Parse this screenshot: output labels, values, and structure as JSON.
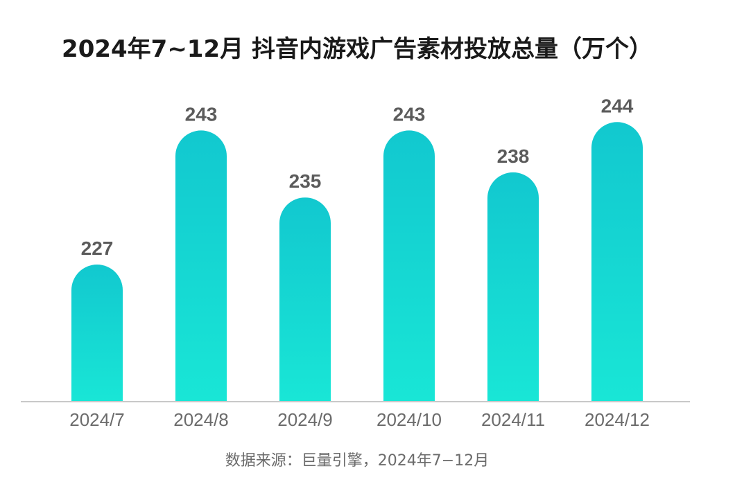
{
  "chart_data": {
    "type": "bar",
    "title": "2024年7~12月 抖音内游戏广告素材投放总量（万个）",
    "categories": [
      "2024/7",
      "2024/8",
      "2024/9",
      "2024/10",
      "2024/11",
      "2024/12"
    ],
    "values": [
      227,
      243,
      235,
      243,
      238,
      244
    ],
    "ylim": [
      0,
      250
    ],
    "grid": false,
    "legend": "none",
    "colors": {
      "bar_top": "#12c8cf",
      "bar_bottom": "#19e6d6",
      "axis": "#c8c8c8"
    }
  },
  "footer": {
    "source": "数据来源：巨量引擎，2024年7−12月"
  }
}
